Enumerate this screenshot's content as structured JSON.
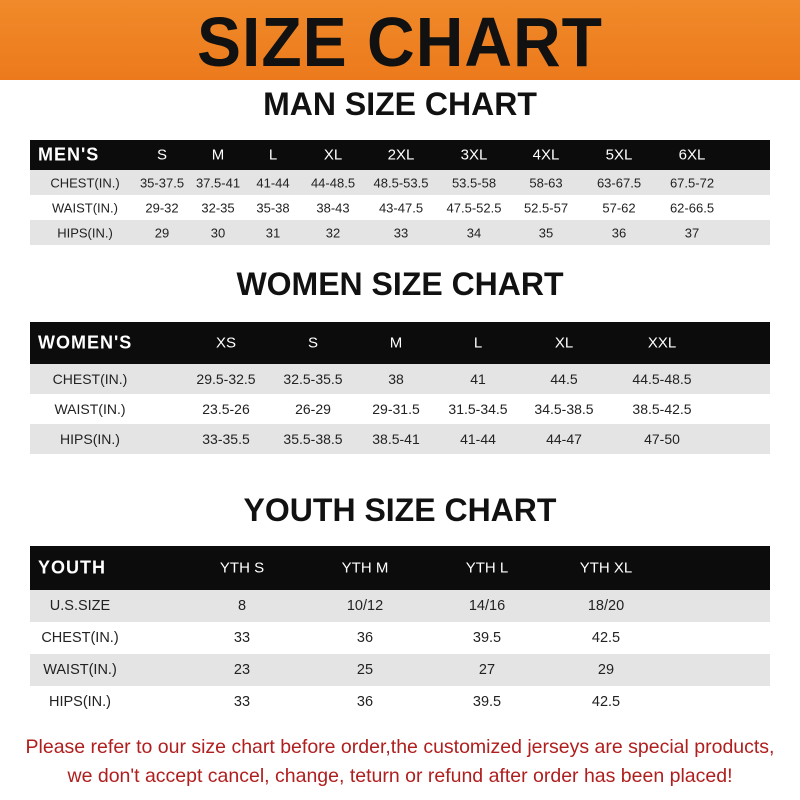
{
  "banner_title": "SIZE CHART",
  "colors": {
    "banner": "#ec7a1c",
    "header_row": "#0c0c0c",
    "stripe": "#e4e4e4",
    "notice": "#b01e1e"
  },
  "men": {
    "title": "MAN SIZE CHART",
    "header": [
      "MEN'S",
      "S",
      "M",
      "L",
      "XL",
      "2XL",
      "3XL",
      "4XL",
      "5XL",
      "6XL"
    ],
    "rows": [
      [
        "CHEST(IN.)",
        "35-37.5",
        "37.5-41",
        "41-44",
        "44-48.5",
        "48.5-53.5",
        "53.5-58",
        "58-63",
        "63-67.5",
        "67.5-72"
      ],
      [
        "WAIST(IN.)",
        "29-32",
        "32-35",
        "35-38",
        "38-43",
        "43-47.5",
        "47.5-52.5",
        "52.5-57",
        "57-62",
        "62-66.5"
      ],
      [
        "HIPS(IN.)",
        "29",
        "30",
        "31",
        "32",
        "33",
        "34",
        "35",
        "36",
        "37"
      ]
    ]
  },
  "women": {
    "title": "WOMEN SIZE CHART",
    "header": [
      "WOMEN'S",
      "XS",
      "S",
      "M",
      "L",
      "XL",
      "XXL"
    ],
    "rows": [
      [
        "CHEST(IN.)",
        "29.5-32.5",
        "32.5-35.5",
        "38",
        "41",
        "44.5",
        "44.5-48.5"
      ],
      [
        "WAIST(IN.)",
        "23.5-26",
        "26-29",
        "29-31.5",
        "31.5-34.5",
        "34.5-38.5",
        "38.5-42.5"
      ],
      [
        "HIPS(IN.)",
        "33-35.5",
        "35.5-38.5",
        "38.5-41",
        "41-44",
        "44-47",
        "47-50"
      ]
    ]
  },
  "youth": {
    "title": "YOUTH SIZE CHART",
    "header": [
      "YOUTH",
      "YTH S",
      "YTH M",
      "YTH L",
      "YTH XL"
    ],
    "rows": [
      [
        "U.S.SIZE",
        "8",
        "10/12",
        "14/16",
        "18/20"
      ],
      [
        "CHEST(IN.)",
        "33",
        "36",
        "39.5",
        "42.5"
      ],
      [
        "WAIST(IN.)",
        "23",
        "25",
        "27",
        "29"
      ],
      [
        "HIPS(IN.)",
        "33",
        "36",
        "39.5",
        "42.5"
      ]
    ]
  },
  "notice": {
    "line1": "Please refer to our size chart before order,the customized jerseys are special products,",
    "line2": "we don't accept cancel, change, teturn or refund after order has been placed!"
  }
}
